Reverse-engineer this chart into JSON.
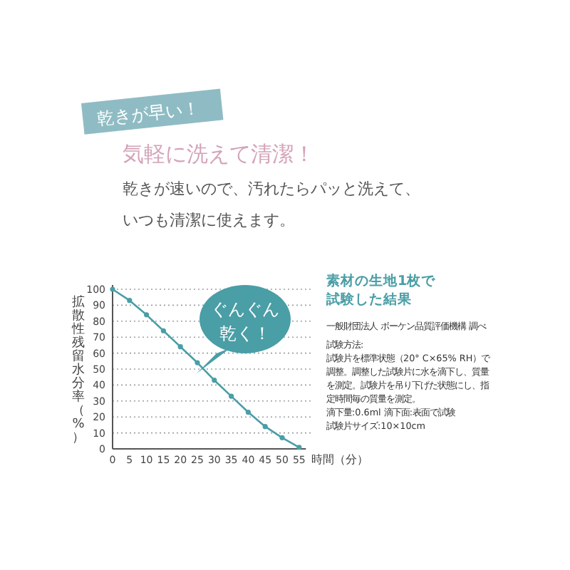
{
  "chart_data": {
    "type": "line",
    "title": "気軽に洗えて清潔！",
    "subtitle": "乾きが速いので、汚れたらパッと洗えて、いつも清潔に使えます。",
    "xlabel": "時間（分）",
    "ylabel": "拡散性残留水分率（%）",
    "x": [
      0,
      5,
      10,
      15,
      20,
      25,
      30,
      35,
      40,
      45,
      50,
      55
    ],
    "series": [
      {
        "color": "#4a9ea6",
        "values": [
          100,
          93,
          84,
          74,
          64,
          54,
          43,
          33,
          23,
          14,
          7,
          1
        ]
      }
    ],
    "xlim": [
      0,
      57
    ],
    "ylim": [
      0,
      100
    ],
    "xticks": [
      0,
      5,
      10,
      15,
      20,
      25,
      30,
      35,
      40,
      45,
      50,
      55
    ],
    "yticks": [
      0,
      10,
      20,
      30,
      40,
      50,
      60,
      70,
      80,
      90,
      100
    ],
    "grid": "y",
    "marker": "circle",
    "line_style": "solid",
    "annotations": [
      "乾きが早い！",
      "ぐんぐん乾く！",
      "素材の生地1枚で",
      "試験した結果",
      "一般財団法人 ボーケン品質評価機構 調べ",
      "試験方法:",
      "試験片を標準状態（20° C×65% RH）で",
      "調整。調整した試験片に水を滴下し、質量",
      "を測定。試験片を吊り下げた状態にし、指",
      "定時間毎の質量を測定。",
      "滴下量:0.6ml 滴下面:表面で試験",
      "試験片サイズ:10×10cm"
    ]
  }
}
